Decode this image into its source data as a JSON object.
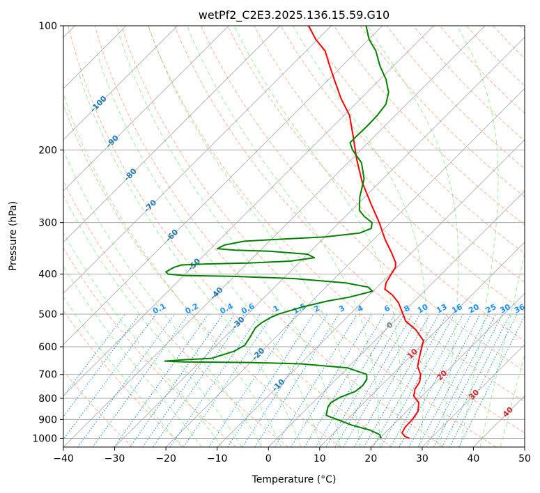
{
  "chart_data": {
    "type": "skew-t log-p",
    "title": "wetPf2_C2E3.2025.136.15.59.G10",
    "xlabel": "Temperature (°C)",
    "ylabel": "Pressure (hPa)",
    "xlim": [
      -40,
      50
    ],
    "ylim": [
      1050,
      100
    ],
    "x_ticks": [
      "−40",
      "−30",
      "−20",
      "−10",
      "0",
      "10",
      "20",
      "30",
      "40",
      "50"
    ],
    "y_ticks": [
      "100",
      "200",
      "300",
      "400",
      "500",
      "600",
      "700",
      "800",
      "900",
      "1000"
    ],
    "colors": {
      "temperature": "#ff0000",
      "dewpoint": "#008000",
      "isotherm": "#808080",
      "isotherm_label": "#1f77b4",
      "dry_adiabat": "#ffa07a",
      "moist_adiabat": "#90ee90",
      "mixing_ratio": "#1e90ff",
      "thetae_label": "#d62728",
      "grid": "#aaaaaa"
    },
    "isotherm_labels": [
      "-100",
      "-90",
      "-80",
      "-70",
      "-60",
      "-50",
      "-40",
      "-30",
      "-20",
      "-10",
      "0",
      "10",
      "20",
      "30",
      "40"
    ],
    "mixing_ratio_labels": [
      "0.1",
      "0.2",
      "0.4",
      "0.6",
      "1",
      "1.5",
      "2",
      "3",
      "4",
      "6",
      "8",
      "10",
      "13",
      "16",
      "20",
      "25",
      "30",
      "36"
    ],
    "series": [
      {
        "name": "Temperature",
        "points": [
          {
            "p": 1000,
            "t": 25.8
          },
          {
            "p": 990,
            "t": 24.6
          },
          {
            "p": 970,
            "t": 23.3
          },
          {
            "p": 940,
            "t": 22.8
          },
          {
            "p": 900,
            "t": 22.7
          },
          {
            "p": 860,
            "t": 22.2
          },
          {
            "p": 820,
            "t": 20.7
          },
          {
            "p": 790,
            "t": 18.4
          },
          {
            "p": 760,
            "t": 17.3
          },
          {
            "p": 730,
            "t": 16.8
          },
          {
            "p": 700,
            "t": 15.5
          },
          {
            "p": 670,
            "t": 13.4
          },
          {
            "p": 640,
            "t": 12.1
          },
          {
            "p": 610,
            "t": 10.8
          },
          {
            "p": 580,
            "t": 9.5
          },
          {
            "p": 545,
            "t": 5.8
          },
          {
            "p": 520,
            "t": 2.2
          },
          {
            "p": 500,
            "t": 0.3
          },
          {
            "p": 470,
            "t": -2.7
          },
          {
            "p": 450,
            "t": -5.4
          },
          {
            "p": 435,
            "t": -8.1
          },
          {
            "p": 420,
            "t": -9.1
          },
          {
            "p": 400,
            "t": -9.8
          },
          {
            "p": 385,
            "t": -10.3
          },
          {
            "p": 375,
            "t": -11.2
          },
          {
            "p": 355,
            "t": -13.9
          },
          {
            "p": 330,
            "t": -17.7
          },
          {
            "p": 300,
            "t": -22.2
          },
          {
            "p": 270,
            "t": -27.5
          },
          {
            "p": 240,
            "t": -33.3
          },
          {
            "p": 210,
            "t": -39.1
          },
          {
            "p": 185,
            "t": -44.2
          },
          {
            "p": 165,
            "t": -48.9
          },
          {
            "p": 150,
            "t": -53.9
          },
          {
            "p": 135,
            "t": -58.9
          },
          {
            "p": 125,
            "t": -62.5
          },
          {
            "p": 115,
            "t": -66.3
          },
          {
            "p": 108,
            "t": -70.3
          },
          {
            "p": 100,
            "t": -74.4
          }
        ]
      },
      {
        "name": "Dewpoint",
        "points": [
          {
            "p": 1000,
            "t": 20.3
          },
          {
            "p": 980,
            "t": 19.3
          },
          {
            "p": 955,
            "t": 16.5
          },
          {
            "p": 930,
            "t": 12.1
          },
          {
            "p": 905,
            "t": 8.7
          },
          {
            "p": 880,
            "t": 5.1
          },
          {
            "p": 840,
            "t": 3.8
          },
          {
            "p": 820,
            "t": 3.5
          },
          {
            "p": 795,
            "t": 4.3
          },
          {
            "p": 770,
            "t": 6.1
          },
          {
            "p": 745,
            "t": 6.4
          },
          {
            "p": 720,
            "t": 6.0
          },
          {
            "p": 700,
            "t": 5.0
          },
          {
            "p": 675,
            "t": 0.0
          },
          {
            "p": 660,
            "t": -10.0
          },
          {
            "p": 655,
            "t": -20.0
          },
          {
            "p": 653,
            "t": -33.0
          },
          {
            "p": 650,
            "t": -37.0
          },
          {
            "p": 645,
            "t": -33.5
          },
          {
            "p": 640,
            "t": -28.4
          },
          {
            "p": 615,
            "t": -25.4
          },
          {
            "p": 595,
            "t": -24.5
          },
          {
            "p": 570,
            "t": -25.0
          },
          {
            "p": 540,
            "t": -25.8
          },
          {
            "p": 525,
            "t": -25.6
          },
          {
            "p": 510,
            "t": -24.9
          },
          {
            "p": 500,
            "t": -24.0
          },
          {
            "p": 480,
            "t": -20.6
          },
          {
            "p": 465,
            "t": -17.0
          },
          {
            "p": 455,
            "t": -13.5
          },
          {
            "p": 440,
            "t": -10.1
          },
          {
            "p": 430,
            "t": -11.8
          },
          {
            "p": 420,
            "t": -17.0
          },
          {
            "p": 410,
            "t": -28.0
          },
          {
            "p": 405,
            "t": -40.0
          },
          {
            "p": 403,
            "t": -50.0
          },
          {
            "p": 400,
            "t": -53.3
          },
          {
            "p": 395,
            "t": -54.2
          },
          {
            "p": 385,
            "t": -53.5
          },
          {
            "p": 380,
            "t": -52.5
          },
          {
            "p": 378,
            "t": -48.0
          },
          {
            "p": 376,
            "t": -40.0
          },
          {
            "p": 372,
            "t": -32.0
          },
          {
            "p": 365,
            "t": -28.0
          },
          {
            "p": 358,
            "t": -30.0
          },
          {
            "p": 352,
            "t": -38.0
          },
          {
            "p": 350,
            "t": -45.0
          },
          {
            "p": 347,
            "t": -48.7
          },
          {
            "p": 340,
            "t": -48.0
          },
          {
            "p": 333,
            "t": -45.0
          },
          {
            "p": 330,
            "t": -40.0
          },
          {
            "p": 325,
            "t": -30.0
          },
          {
            "p": 318,
            "t": -24.0
          },
          {
            "p": 310,
            "t": -22.6
          },
          {
            "p": 300,
            "t": -23.6
          },
          {
            "p": 290,
            "t": -26.3
          },
          {
            "p": 280,
            "t": -28.5
          },
          {
            "p": 260,
            "t": -31.0
          },
          {
            "p": 235,
            "t": -33.7
          },
          {
            "p": 215,
            "t": -37.3
          },
          {
            "p": 200,
            "t": -41.6
          },
          {
            "p": 192,
            "t": -43.5
          },
          {
            "p": 185,
            "t": -43.5
          },
          {
            "p": 175,
            "t": -43.4
          },
          {
            "p": 165,
            "t": -43.5
          },
          {
            "p": 155,
            "t": -44.0
          },
          {
            "p": 145,
            "t": -45.8
          },
          {
            "p": 135,
            "t": -48.8
          },
          {
            "p": 125,
            "t": -52.7
          },
          {
            "p": 115,
            "t": -56.4
          },
          {
            "p": 108,
            "t": -59.9
          },
          {
            "p": 100,
            "t": -63.2
          }
        ]
      }
    ]
  }
}
